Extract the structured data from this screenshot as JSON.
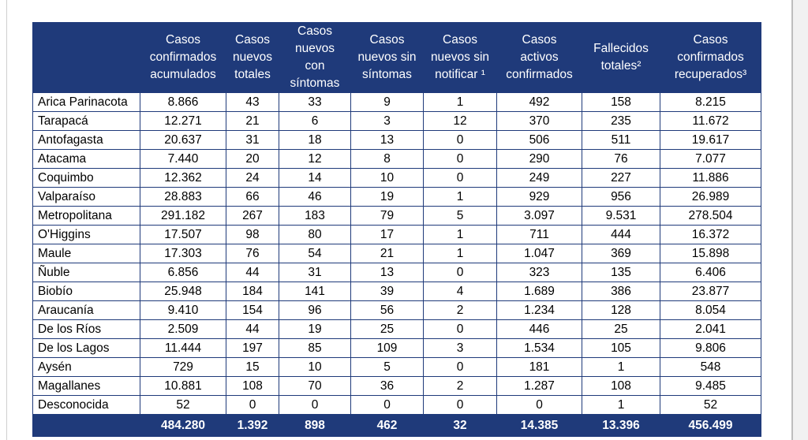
{
  "headers": [
    "",
    "Casos confirmados acumulados",
    "Casos nuevos totales",
    "Casos nuevos con síntomas",
    "Casos nuevos sin síntomas",
    "Casos nuevos sin notificar ¹",
    "Casos activos confirmados",
    "Fallecidos totales²",
    "Casos confirmados recuperados³"
  ],
  "rows": [
    [
      "Arica Parinacota",
      "8.866",
      "43",
      "33",
      "9",
      "1",
      "492",
      "158",
      "8.215"
    ],
    [
      "Tarapacá",
      "12.271",
      "21",
      "6",
      "3",
      "12",
      "370",
      "235",
      "11.672"
    ],
    [
      "Antofagasta",
      "20.637",
      "31",
      "18",
      "13",
      "0",
      "506",
      "511",
      "19.617"
    ],
    [
      "Atacama",
      "7.440",
      "20",
      "12",
      "8",
      "0",
      "290",
      "76",
      "7.077"
    ],
    [
      "Coquimbo",
      "12.362",
      "24",
      "14",
      "10",
      "0",
      "249",
      "227",
      "11.886"
    ],
    [
      "Valparaíso",
      "28.883",
      "66",
      "46",
      "19",
      "1",
      "929",
      "956",
      "26.989"
    ],
    [
      "Metropolitana",
      "291.182",
      "267",
      "183",
      "79",
      "5",
      "3.097",
      "9.531",
      "278.504"
    ],
    [
      "O'Higgins",
      "17.507",
      "98",
      "80",
      "17",
      "1",
      "711",
      "444",
      "16.372"
    ],
    [
      "Maule",
      "17.303",
      "76",
      "54",
      "21",
      "1",
      "1.047",
      "369",
      "15.898"
    ],
    [
      "Ñuble",
      "6.856",
      "44",
      "31",
      "13",
      "0",
      "323",
      "135",
      "6.406"
    ],
    [
      "Biobío",
      "25.948",
      "184",
      "141",
      "39",
      "4",
      "1.689",
      "386",
      "23.877"
    ],
    [
      "Araucanía",
      "9.410",
      "154",
      "96",
      "56",
      "2",
      "1.234",
      "128",
      "8.054"
    ],
    [
      "De los Ríos",
      "2.509",
      "44",
      "19",
      "25",
      "0",
      "446",
      "25",
      "2.041"
    ],
    [
      "De los Lagos",
      "11.444",
      "197",
      "85",
      "109",
      "3",
      "1.534",
      "105",
      "9.806"
    ],
    [
      "Aysén",
      "729",
      "15",
      "10",
      "5",
      "0",
      "181",
      "1",
      "548"
    ],
    [
      "Magallanes",
      "10.881",
      "108",
      "70",
      "36",
      "2",
      "1.287",
      "108",
      "9.485"
    ],
    [
      "Desconocida",
      "52",
      "0",
      "0",
      "0",
      "0",
      "0",
      "1",
      "52"
    ]
  ],
  "totals": [
    "",
    "484.280",
    "1.392",
    "898",
    "462",
    "32",
    "14.385",
    "13.396",
    "456.499"
  ]
}
